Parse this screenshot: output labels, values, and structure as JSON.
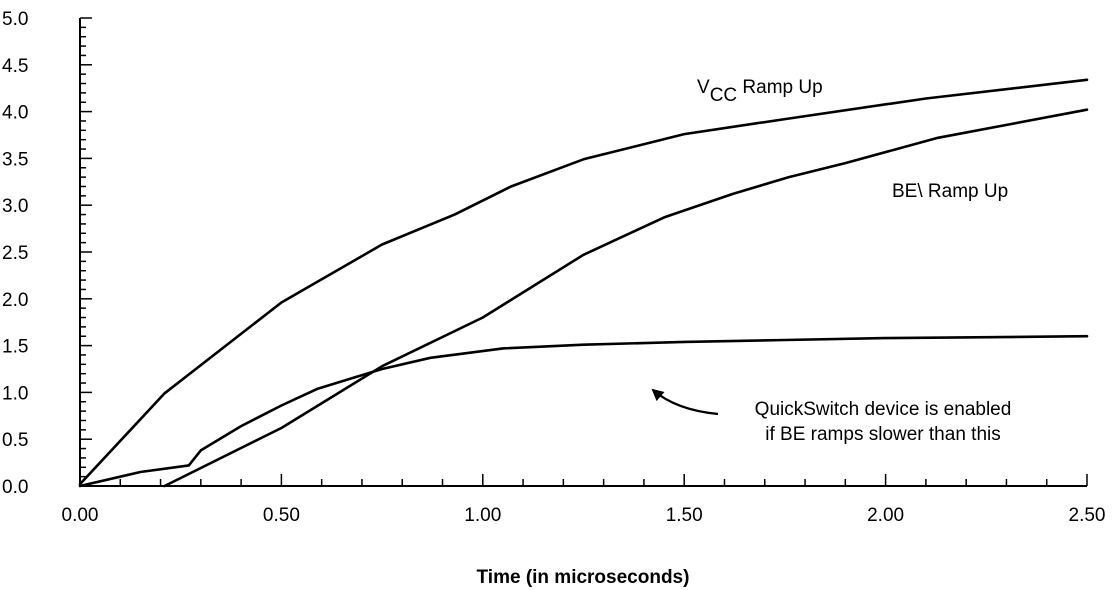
{
  "chart_data": {
    "type": "line",
    "title": "",
    "xlabel": "Time (in microseconds)",
    "ylabel": "",
    "xlim": [
      0,
      2.5
    ],
    "ylim": [
      0,
      5.0
    ],
    "x_ticks": [
      "0.00",
      "0.50",
      "1.00",
      "1.50",
      "2.00",
      "2.50"
    ],
    "x_tick_values": [
      0,
      0.5,
      1.0,
      1.5,
      2.0,
      2.5
    ],
    "y_ticks": [
      "0.0",
      "0.5",
      "1.0",
      "1.5",
      "2.0",
      "2.5",
      "3.0",
      "3.5",
      "4.0",
      "4.5",
      "5.0"
    ],
    "y_tick_values": [
      0,
      0.5,
      1.0,
      1.5,
      2.0,
      2.5,
      3.0,
      3.5,
      4.0,
      4.5,
      5.0
    ],
    "grid": false,
    "series": [
      {
        "x": [
          0,
          0.21,
          0.5,
          0.75,
          0.93,
          1.07,
          1.25,
          1.5,
          1.75,
          2.1,
          2.5
        ],
        "y": [
          0.02,
          0.99,
          1.96,
          2.58,
          2.9,
          3.2,
          3.49,
          3.76,
          3.92,
          4.14,
          4.34
        ]
      },
      {
        "x": [
          0.21,
          0.5,
          0.75,
          1.0,
          1.25,
          1.45,
          1.62,
          1.76,
          1.9,
          2.13,
          2.5
        ],
        "y": [
          0.0,
          0.62,
          1.28,
          1.8,
          2.47,
          2.87,
          3.12,
          3.3,
          3.45,
          3.72,
          4.02
        ]
      },
      {
        "x": [
          0,
          0.15,
          0.27,
          0.3,
          0.4,
          0.5,
          0.59,
          0.75,
          0.87,
          1.05,
          1.25,
          1.5,
          1.75,
          2.0,
          2.26,
          2.5
        ],
        "y": [
          0.0,
          0.15,
          0.22,
          0.38,
          0.64,
          0.86,
          1.04,
          1.25,
          1.37,
          1.47,
          1.51,
          1.54,
          1.56,
          1.58,
          1.59,
          1.6
        ]
      }
    ],
    "annotations": {
      "vcc_label_main": "V",
      "vcc_label_sub": "CC",
      "vcc_label_rest": " Ramp Up",
      "be_label": "BE\\ Ramp Up",
      "callout_line1": "QuickSwitch device is enabled",
      "callout_line2": "if BE ramps slower than this"
    }
  }
}
